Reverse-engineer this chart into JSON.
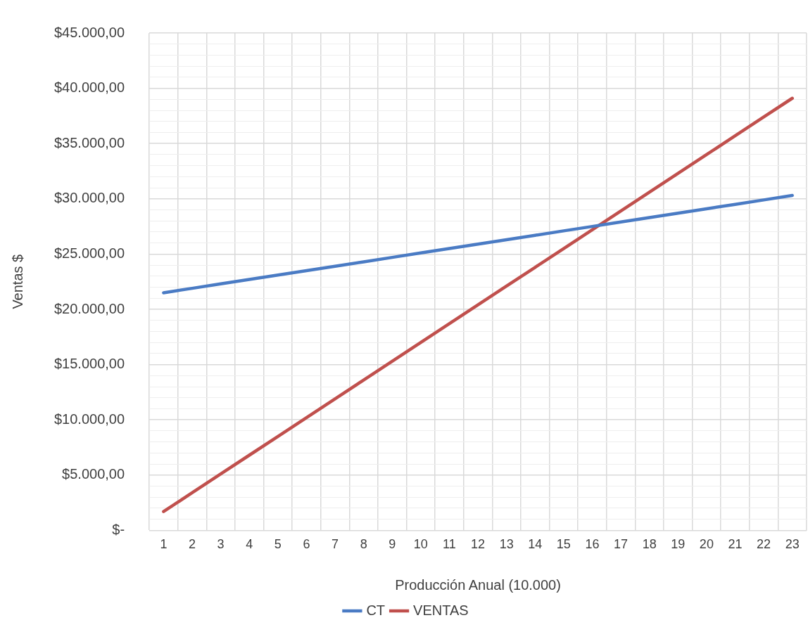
{
  "chart_data": {
    "type": "line",
    "xlabel": "Producción Anual (10.000)",
    "ylabel": "Ventas $",
    "categories": [
      "1",
      "2",
      "3",
      "4",
      "5",
      "6",
      "7",
      "8",
      "9",
      "10",
      "11",
      "12",
      "13",
      "14",
      "15",
      "16",
      "17",
      "18",
      "19",
      "20",
      "21",
      "22",
      "23"
    ],
    "series": [
      {
        "name": "CT",
        "color": "#4a7bc4",
        "values": [
          21500,
          21900,
          22300,
          22700,
          23100,
          23500,
          23900,
          24300,
          24700,
          25100,
          25500,
          25900,
          26300,
          26700,
          27100,
          27500,
          27900,
          28300,
          28700,
          29100,
          29500,
          29900,
          30300
        ]
      },
      {
        "name": "VENTAS",
        "color": "#c0504d",
        "values": [
          1700,
          3400,
          5100,
          6800,
          8500,
          10200,
          11900,
          13600,
          15300,
          17000,
          18700,
          20400,
          22100,
          23800,
          25500,
          27200,
          28900,
          30600,
          32300,
          34000,
          35700,
          37400,
          39100
        ]
      }
    ],
    "ylim": [
      0,
      45000
    ],
    "yticks": [
      {
        "value": 0,
        "label": "$-"
      },
      {
        "value": 1000,
        "label": null
      },
      {
        "value": 2000,
        "label": null
      },
      {
        "value": 3000,
        "label": null
      },
      {
        "value": 4000,
        "label": null
      },
      {
        "value": 5000,
        "label": "$5.000,00"
      },
      {
        "value": 6000,
        "label": null
      },
      {
        "value": 7000,
        "label": null
      },
      {
        "value": 8000,
        "label": null
      },
      {
        "value": 9000,
        "label": null
      },
      {
        "value": 10000,
        "label": "$10.000,00"
      },
      {
        "value": 11000,
        "label": null
      },
      {
        "value": 12000,
        "label": null
      },
      {
        "value": 13000,
        "label": null
      },
      {
        "value": 14000,
        "label": null
      },
      {
        "value": 15000,
        "label": "$15.000,00"
      },
      {
        "value": 16000,
        "label": null
      },
      {
        "value": 17000,
        "label": null
      },
      {
        "value": 18000,
        "label": null
      },
      {
        "value": 19000,
        "label": null
      },
      {
        "value": 20000,
        "label": "$20.000,00"
      },
      {
        "value": 21000,
        "label": null
      },
      {
        "value": 22000,
        "label": null
      },
      {
        "value": 23000,
        "label": null
      },
      {
        "value": 24000,
        "label": null
      },
      {
        "value": 25000,
        "label": "$25.000,00"
      },
      {
        "value": 26000,
        "label": null
      },
      {
        "value": 27000,
        "label": null
      },
      {
        "value": 28000,
        "label": null
      },
      {
        "value": 29000,
        "label": null
      },
      {
        "value": 30000,
        "label": "$30.000,00"
      },
      {
        "value": 31000,
        "label": null
      },
      {
        "value": 32000,
        "label": null
      },
      {
        "value": 33000,
        "label": null
      },
      {
        "value": 34000,
        "label": null
      },
      {
        "value": 35000,
        "label": "$35.000,00"
      },
      {
        "value": 36000,
        "label": null
      },
      {
        "value": 37000,
        "label": null
      },
      {
        "value": 38000,
        "label": null
      },
      {
        "value": 39000,
        "label": null
      },
      {
        "value": 40000,
        "label": "$40.000,00"
      },
      {
        "value": 41000,
        "label": null
      },
      {
        "value": 42000,
        "label": null
      },
      {
        "value": 43000,
        "label": null
      },
      {
        "value": 44000,
        "label": null
      },
      {
        "value": 45000,
        "label": "$45.000,00"
      }
    ],
    "grid": true,
    "legend": "bottom",
    "marker": "none",
    "line_style": "solid"
  }
}
